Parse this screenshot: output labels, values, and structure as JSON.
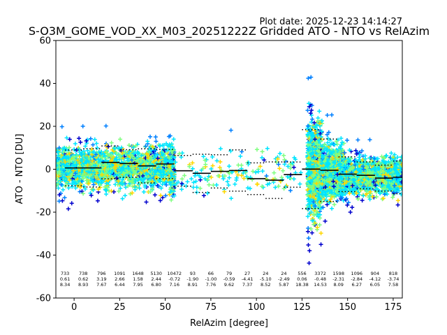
{
  "chart_data": {
    "type": "scatter",
    "title": "S-O3M_GOME_VOD_XX_M03_20251222Z Gridded ATO - NTO vs RelAzim",
    "plot_date": "Plot date: 2025-12-23 14:14:27",
    "xlabel": "RelAzim [degree]",
    "ylabel": "ATO - NTO [DU]",
    "xlim": [
      -10,
      180
    ],
    "ylim": [
      -60,
      60
    ],
    "xticks": [
      0,
      25,
      50,
      75,
      100,
      125,
      150,
      175
    ],
    "yticks": [
      -60,
      -40,
      -20,
      0,
      20,
      40,
      60
    ],
    "colormap": [
      "#0000cd",
      "#0080ff",
      "#00e5ff",
      "#7fff7f",
      "#ffd700"
    ],
    "bins": [
      {
        "x": 0,
        "n": "733",
        "mean": "0.61",
        "std": "8.34"
      },
      {
        "x": 10,
        "n": "738",
        "mean": "0.62",
        "std": "8.93"
      },
      {
        "x": 20,
        "n": "796",
        "mean": "3.19",
        "std": "7.67"
      },
      {
        "x": 30,
        "n": "1091",
        "mean": "2.66",
        "std": "6.44"
      },
      {
        "x": 40,
        "n": "1648",
        "mean": "1.58",
        "std": "7.95"
      },
      {
        "x": 50,
        "n": "5130",
        "mean": "2.44",
        "std": "6.80"
      },
      {
        "x": 60,
        "n": "10472",
        "mean": "-0.72",
        "std": "7.16"
      },
      {
        "x": 70,
        "n": "93",
        "mean": "-1.90",
        "std": "8.91"
      },
      {
        "x": 80,
        "n": "66",
        "mean": "-1.00",
        "std": "7.76"
      },
      {
        "x": 90,
        "n": "79",
        "mean": "-0.59",
        "std": "9.62"
      },
      {
        "x": 100,
        "n": "27",
        "mean": "-4.41",
        "std": "7.37"
      },
      {
        "x": 110,
        "n": "24",
        "mean": "-5.10",
        "std": "8.52"
      },
      {
        "x": 120,
        "n": "24",
        "mean": "-2.49",
        "std": "5.87"
      },
      {
        "x": 130,
        "n": "556",
        "mean": "0.06",
        "std": "18.38"
      },
      {
        "x": 140,
        "n": "3372",
        "mean": "-0.48",
        "std": "14.53"
      },
      {
        "x": 150,
        "n": "1598",
        "mean": "-2.31",
        "std": "8.09"
      },
      {
        "x": 160,
        "n": "1096",
        "mean": "-2.84",
        "std": "6.27"
      },
      {
        "x": 170,
        "n": "904",
        "mean": "-4.12",
        "std": "6.05"
      },
      {
        "x": 180,
        "n": "818",
        "mean": "-3.74",
        "std": "7.58"
      }
    ]
  }
}
